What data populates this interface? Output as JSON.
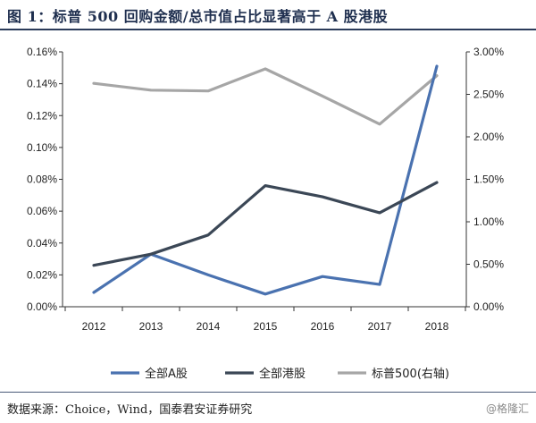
{
  "title": "图 1：标普 500 回购金额/总市值占比显著高于 A 股港股",
  "source": "数据来源：Choice，Wind，国泰君安证券研究",
  "watermark": "@格隆汇",
  "chart_data": {
    "type": "line",
    "title": "图 1：标普 500 回购金额/总市值占比显著高于 A 股港股",
    "x": [
      "2012",
      "2013",
      "2014",
      "2015",
      "2016",
      "2017",
      "2018"
    ],
    "y_left": {
      "range": [
        0,
        0.16
      ],
      "ticks": [
        "0.00%",
        "0.02%",
        "0.04%",
        "0.06%",
        "0.08%",
        "0.10%",
        "0.12%",
        "0.14%",
        "0.16%"
      ],
      "tick_values": [
        0,
        0.02,
        0.04,
        0.06,
        0.08,
        0.1,
        0.12,
        0.14,
        0.16
      ]
    },
    "y_right": {
      "range": [
        0,
        3.0
      ],
      "ticks": [
        "0.00%",
        "0.50%",
        "1.00%",
        "1.50%",
        "2.00%",
        "2.50%",
        "3.00%"
      ],
      "tick_values": [
        0,
        0.5,
        1.0,
        1.5,
        2.0,
        2.5,
        3.0
      ]
    },
    "grid": false,
    "legend_position": "bottom",
    "series": [
      {
        "name": "全部A股",
        "axis": "left",
        "color": "#4a72b0",
        "values": [
          0.009,
          0.033,
          0.02,
          0.008,
          0.019,
          0.014,
          0.151
        ]
      },
      {
        "name": "全部港股",
        "axis": "left",
        "color": "#3b4756",
        "values": [
          0.026,
          0.033,
          0.045,
          0.076,
          0.069,
          0.059,
          0.078
        ]
      },
      {
        "name": "标普500(右轴)",
        "axis": "right",
        "color": "#a6a6a6",
        "values": [
          2.63,
          2.55,
          2.54,
          2.8,
          2.48,
          2.15,
          2.72
        ]
      }
    ]
  }
}
